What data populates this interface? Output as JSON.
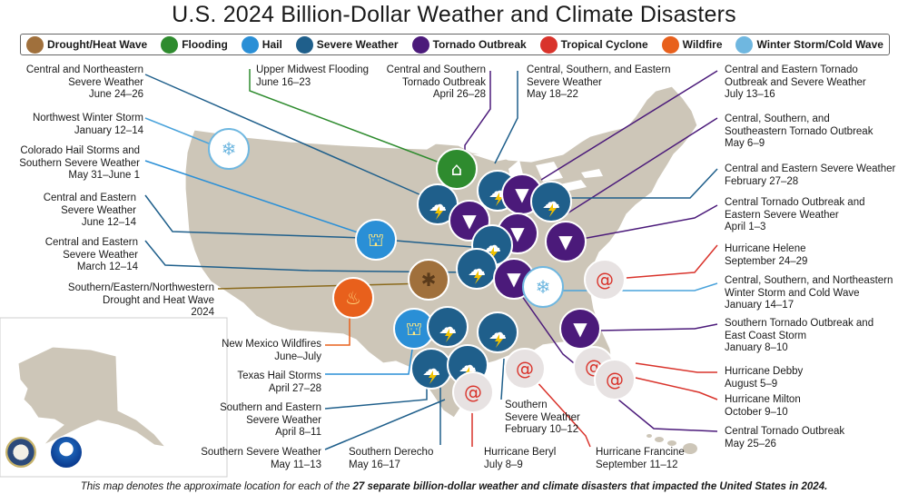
{
  "title": "U.S. 2024 Billion-Dollar Weather and Climate Disasters",
  "legend": [
    {
      "label": "Drought/Heat Wave",
      "icon": "drought-icon",
      "color": "#a0703c"
    },
    {
      "label": "Flooding",
      "icon": "flooding-icon",
      "color": "#2e8b2e"
    },
    {
      "label": "Hail",
      "icon": "hail-icon",
      "color": "#2a8fd6"
    },
    {
      "label": "Severe Weather",
      "icon": "severe-weather-icon",
      "color": "#1f5f8b"
    },
    {
      "label": "Tornado Outbreak",
      "icon": "tornado-icon",
      "color": "#4b1a7a"
    },
    {
      "label": "Tropical Cyclone",
      "icon": "tropical-cyclone-icon",
      "color": "#d9332b"
    },
    {
      "label": "Wildfire",
      "icon": "wildfire-icon",
      "color": "#e8601c"
    },
    {
      "label": "Winter Storm/Cold Wave",
      "icon": "winter-storm-icon",
      "color": "#6fb7e0"
    }
  ],
  "events": {
    "ne_severe": {
      "name": "Central and Northeastern\nSevere Weather",
      "date": "June 24–26"
    },
    "nw_winter": {
      "name": "Northwest Winter Storm",
      "date": "January 12–14"
    },
    "co_hail": {
      "name": "Colorado Hail Storms and\nSouthern Severe Weather",
      "date": "May 31–June 1"
    },
    "ce_severe_jun": {
      "name": "Central and Eastern\nSevere Weather",
      "date": "June 12–14"
    },
    "ce_severe_mar": {
      "name": "Central and Eastern\nSevere Weather",
      "date": "March 12–14"
    },
    "drought": {
      "name": "Southern/Eastern/Northwestern\nDrought and Heat Wave",
      "date": "2024"
    },
    "nm_fire": {
      "name": "New Mexico Wildfires",
      "date": "June–July"
    },
    "tx_hail": {
      "name": "Texas Hail Storms",
      "date": "April 27–28"
    },
    "se_severe": {
      "name": "Southern and Eastern\nSevere Weather",
      "date": "April 8–11"
    },
    "s_severe_may": {
      "name": "Southern Severe Weather",
      "date": "May 11–13"
    },
    "derecho": {
      "name": "Southern Derecho",
      "date": "May 16–17"
    },
    "beryl": {
      "name": "Hurricane Beryl",
      "date": "July 8–9"
    },
    "s_severe_feb": {
      "name": "Southern\nSevere Weather",
      "date": "February 10–12"
    },
    "francine": {
      "name": "Hurricane Francine",
      "date": "September 11–12"
    },
    "mw_flood": {
      "name": "Upper Midwest Flooding",
      "date": "June 16–23"
    },
    "cs_tornado": {
      "name": "Central and Southern\nTornado Outbreak",
      "date": "April 26–28"
    },
    "cse_severe": {
      "name": "Central, Southern, and Eastern\nSevere Weather",
      "date": "May 18–22"
    },
    "ce_tornado_jul": {
      "name": "Central and Eastern Tornado\nOutbreak and Severe Weather",
      "date": "July 13–16"
    },
    "cs_se_tornado": {
      "name": "Central, Southern, and\nSoutheastern Tornado Outbreak",
      "date": "May 6–9"
    },
    "ce_severe_feb": {
      "name": "Central and Eastern Severe Weather",
      "date": "February 27–28"
    },
    "c_tornado_apr": {
      "name": "Central Tornado Outbreak and\nEastern Severe Weather",
      "date": "April 1–3"
    },
    "helene": {
      "name": "Hurricane Helene",
      "date": "September 24–29"
    },
    "csne_winter": {
      "name": "Central, Southern, and Northeastern\nWinter Storm and Cold Wave",
      "date": "January 14–17"
    },
    "s_tornado_jan": {
      "name": "Southern Tornado Outbreak and\nEast Coast Storm",
      "date": "January 8–10"
    },
    "debby": {
      "name": "Hurricane Debby",
      "date": "August 5–9"
    },
    "milton": {
      "name": "Hurricane Milton",
      "date": "October 9–10"
    },
    "c_tornado_may": {
      "name": "Central Tornado Outbreak",
      "date": "May 25–26"
    }
  },
  "footer": {
    "prefix": "This map denotes the approximate location for each of the ",
    "bold": "27 separate billion-dollar weather and climate disasters that impacted the United States in 2024."
  }
}
